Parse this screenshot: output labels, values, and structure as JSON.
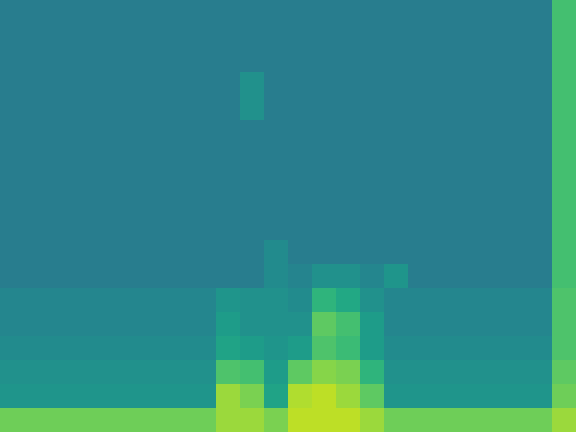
{
  "chart_data": {
    "type": "heatmap",
    "color": "viridis",
    "tick_labels": false,
    "color_range": [
      0,
      1
    ],
    "cells": [
      [
        0.42,
        0.42,
        0.42,
        0.42,
        0.42,
        0.42,
        0.42,
        0.42,
        0.42,
        0.42,
        0.42,
        0.42,
        0.42,
        0.42,
        0.42,
        0.42,
        0.42,
        0.42,
        0.42,
        0.42,
        0.42,
        0.42,
        0.42,
        0.7
      ],
      [
        0.42,
        0.42,
        0.42,
        0.42,
        0.42,
        0.42,
        0.42,
        0.42,
        0.42,
        0.42,
        0.42,
        0.42,
        0.42,
        0.42,
        0.42,
        0.42,
        0.42,
        0.42,
        0.42,
        0.42,
        0.42,
        0.42,
        0.42,
        0.7
      ],
      [
        0.42,
        0.42,
        0.42,
        0.42,
        0.42,
        0.42,
        0.42,
        0.42,
        0.42,
        0.42,
        0.42,
        0.42,
        0.42,
        0.42,
        0.42,
        0.42,
        0.42,
        0.42,
        0.42,
        0.42,
        0.42,
        0.42,
        0.42,
        0.7
      ],
      [
        0.42,
        0.42,
        0.42,
        0.42,
        0.42,
        0.42,
        0.42,
        0.42,
        0.42,
        0.42,
        0.5,
        0.42,
        0.42,
        0.42,
        0.42,
        0.42,
        0.42,
        0.42,
        0.42,
        0.42,
        0.42,
        0.42,
        0.42,
        0.7
      ],
      [
        0.42,
        0.42,
        0.42,
        0.42,
        0.42,
        0.42,
        0.42,
        0.42,
        0.42,
        0.42,
        0.5,
        0.42,
        0.42,
        0.42,
        0.42,
        0.42,
        0.42,
        0.42,
        0.42,
        0.42,
        0.42,
        0.42,
        0.42,
        0.7
      ],
      [
        0.42,
        0.42,
        0.42,
        0.42,
        0.42,
        0.42,
        0.42,
        0.42,
        0.42,
        0.42,
        0.42,
        0.42,
        0.42,
        0.42,
        0.42,
        0.42,
        0.42,
        0.42,
        0.42,
        0.42,
        0.42,
        0.42,
        0.42,
        0.7
      ],
      [
        0.42,
        0.42,
        0.42,
        0.42,
        0.42,
        0.42,
        0.42,
        0.42,
        0.42,
        0.42,
        0.42,
        0.42,
        0.42,
        0.42,
        0.42,
        0.42,
        0.42,
        0.42,
        0.42,
        0.42,
        0.42,
        0.42,
        0.42,
        0.7
      ],
      [
        0.42,
        0.42,
        0.42,
        0.42,
        0.42,
        0.42,
        0.42,
        0.42,
        0.42,
        0.42,
        0.42,
        0.42,
        0.42,
        0.42,
        0.42,
        0.42,
        0.42,
        0.42,
        0.42,
        0.42,
        0.42,
        0.42,
        0.42,
        0.7
      ],
      [
        0.42,
        0.42,
        0.42,
        0.42,
        0.42,
        0.42,
        0.42,
        0.42,
        0.42,
        0.42,
        0.42,
        0.42,
        0.42,
        0.42,
        0.42,
        0.42,
        0.42,
        0.42,
        0.42,
        0.42,
        0.42,
        0.42,
        0.42,
        0.7
      ],
      [
        0.42,
        0.42,
        0.42,
        0.42,
        0.42,
        0.42,
        0.42,
        0.42,
        0.42,
        0.42,
        0.42,
        0.42,
        0.42,
        0.42,
        0.42,
        0.42,
        0.42,
        0.42,
        0.42,
        0.42,
        0.42,
        0.42,
        0.42,
        0.7
      ],
      [
        0.42,
        0.42,
        0.42,
        0.42,
        0.42,
        0.42,
        0.42,
        0.42,
        0.42,
        0.42,
        0.42,
        0.48,
        0.42,
        0.42,
        0.42,
        0.42,
        0.42,
        0.42,
        0.42,
        0.42,
        0.42,
        0.42,
        0.42,
        0.7
      ],
      [
        0.42,
        0.42,
        0.42,
        0.42,
        0.42,
        0.42,
        0.42,
        0.42,
        0.42,
        0.42,
        0.42,
        0.48,
        0.45,
        0.5,
        0.5,
        0.46,
        0.52,
        0.42,
        0.42,
        0.42,
        0.42,
        0.42,
        0.42,
        0.7
      ],
      [
        0.46,
        0.46,
        0.46,
        0.46,
        0.46,
        0.46,
        0.46,
        0.46,
        0.46,
        0.52,
        0.5,
        0.5,
        0.48,
        0.65,
        0.6,
        0.5,
        0.46,
        0.46,
        0.46,
        0.46,
        0.46,
        0.46,
        0.46,
        0.72
      ],
      [
        0.46,
        0.46,
        0.46,
        0.46,
        0.46,
        0.46,
        0.46,
        0.46,
        0.46,
        0.55,
        0.5,
        0.5,
        0.5,
        0.75,
        0.7,
        0.55,
        0.46,
        0.46,
        0.46,
        0.46,
        0.46,
        0.46,
        0.46,
        0.72
      ],
      [
        0.48,
        0.48,
        0.48,
        0.48,
        0.48,
        0.48,
        0.48,
        0.48,
        0.48,
        0.58,
        0.55,
        0.52,
        0.55,
        0.72,
        0.68,
        0.55,
        0.48,
        0.48,
        0.48,
        0.48,
        0.48,
        0.48,
        0.48,
        0.72
      ],
      [
        0.5,
        0.5,
        0.5,
        0.5,
        0.5,
        0.5,
        0.5,
        0.5,
        0.5,
        0.72,
        0.7,
        0.55,
        0.75,
        0.82,
        0.8,
        0.65,
        0.5,
        0.5,
        0.5,
        0.5,
        0.5,
        0.5,
        0.5,
        0.75
      ],
      [
        0.52,
        0.52,
        0.52,
        0.52,
        0.52,
        0.52,
        0.52,
        0.52,
        0.52,
        0.85,
        0.8,
        0.58,
        0.88,
        0.9,
        0.85,
        0.75,
        0.52,
        0.52,
        0.52,
        0.52,
        0.52,
        0.52,
        0.52,
        0.78
      ],
      [
        0.78,
        0.78,
        0.78,
        0.78,
        0.78,
        0.78,
        0.78,
        0.78,
        0.78,
        0.85,
        0.85,
        0.8,
        0.9,
        0.9,
        0.9,
        0.85,
        0.78,
        0.78,
        0.78,
        0.78,
        0.78,
        0.78,
        0.78,
        0.85
      ]
    ]
  }
}
